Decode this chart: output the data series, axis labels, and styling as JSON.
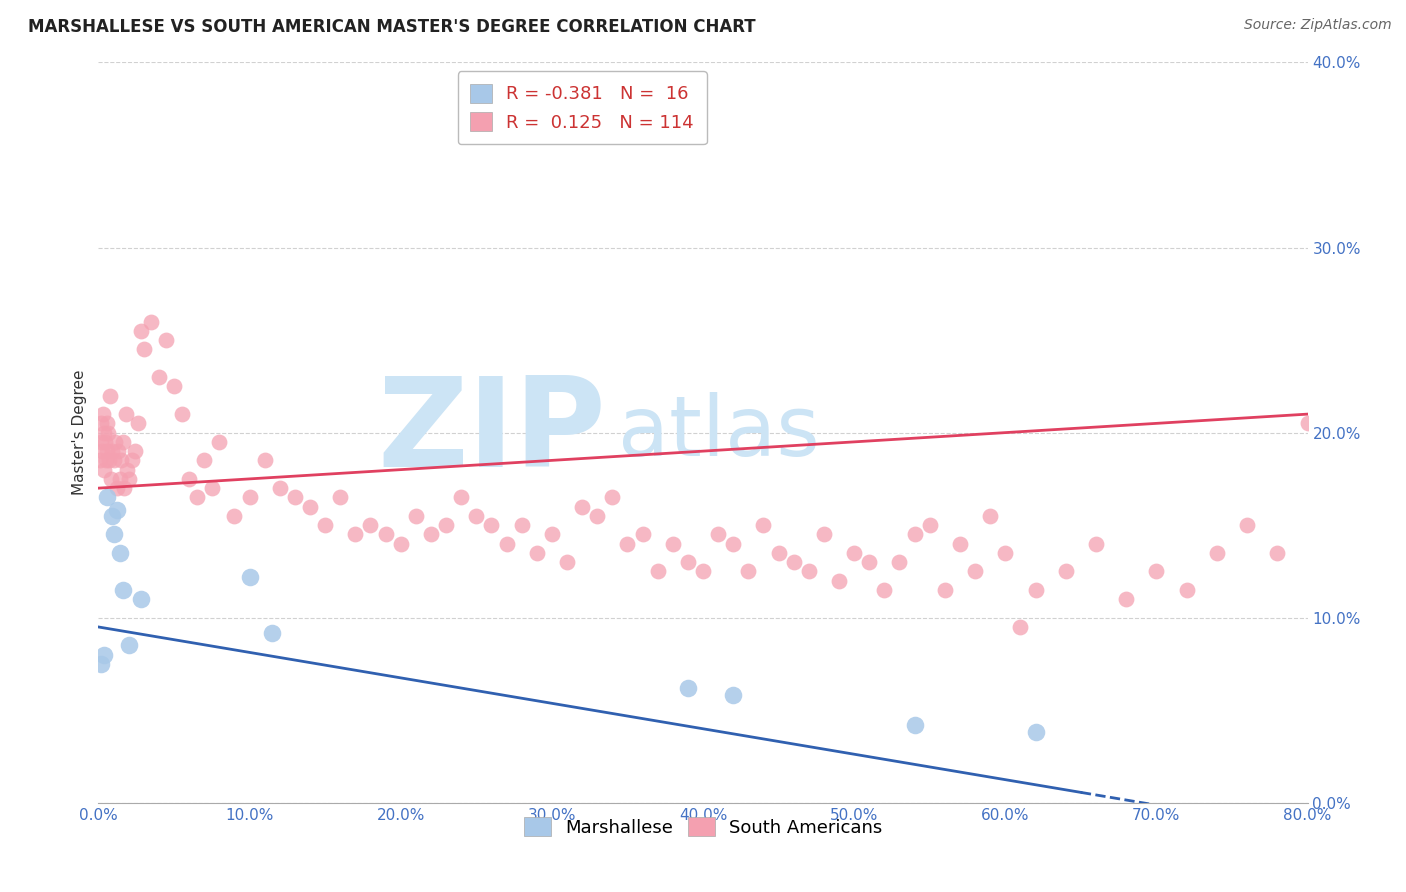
{
  "title": "MARSHALLESE VS SOUTH AMERICAN MASTER'S DEGREE CORRELATION CHART",
  "source": "Source: ZipAtlas.com",
  "xlabel_ticks": [
    0,
    10,
    20,
    30,
    40,
    50,
    60,
    70,
    80
  ],
  "ylabel_ticks": [
    0,
    10,
    20,
    30,
    40
  ],
  "xlim": [
    0,
    80
  ],
  "ylim": [
    0,
    40
  ],
  "ylabel": "Master's Degree",
  "marshallese_x": [
    0.2,
    0.4,
    0.6,
    0.9,
    1.0,
    1.2,
    1.4,
    1.6,
    2.0,
    2.8,
    10.0,
    11.5,
    39.0,
    42.0,
    54.0,
    62.0
  ],
  "marshallese_y": [
    7.5,
    8.0,
    16.5,
    15.5,
    14.5,
    15.8,
    13.5,
    11.5,
    8.5,
    11.0,
    12.2,
    9.2,
    6.2,
    5.8,
    4.2,
    3.8
  ],
  "south_american_x": [
    0.1,
    0.15,
    0.2,
    0.25,
    0.3,
    0.35,
    0.4,
    0.45,
    0.5,
    0.55,
    0.6,
    0.65,
    0.7,
    0.75,
    0.8,
    0.9,
    1.0,
    1.1,
    1.2,
    1.3,
    1.4,
    1.5,
    1.6,
    1.7,
    1.8,
    1.9,
    2.0,
    2.2,
    2.4,
    2.6,
    2.8,
    3.0,
    3.5,
    4.0,
    4.5,
    5.0,
    5.5,
    6.0,
    6.5,
    7.0,
    7.5,
    8.0,
    9.0,
    10.0,
    11.0,
    12.0,
    13.0,
    14.0,
    15.0,
    16.0,
    17.0,
    18.0,
    19.0,
    20.0,
    21.0,
    22.0,
    23.0,
    24.0,
    25.0,
    26.0,
    27.0,
    28.0,
    29.0,
    30.0,
    31.0,
    32.0,
    33.0,
    34.0,
    35.0,
    36.0,
    37.0,
    38.0,
    39.0,
    40.0,
    41.0,
    42.0,
    43.0,
    44.0,
    45.0,
    46.0,
    47.0,
    48.0,
    49.0,
    50.0,
    51.0,
    52.0,
    53.0,
    54.0,
    55.0,
    56.0,
    57.0,
    58.0,
    59.0,
    60.0,
    61.0,
    62.0,
    64.0,
    66.0,
    68.0,
    70.0,
    72.0,
    74.0,
    76.0,
    78.0,
    80.0
  ],
  "south_american_y": [
    18.5,
    19.5,
    20.5,
    19.0,
    21.0,
    18.0,
    20.0,
    19.5,
    18.5,
    20.5,
    19.0,
    20.0,
    18.5,
    22.0,
    17.5,
    19.0,
    18.5,
    19.5,
    17.0,
    19.0,
    17.5,
    18.5,
    19.5,
    17.0,
    21.0,
    18.0,
    17.5,
    18.5,
    19.0,
    20.5,
    25.5,
    24.5,
    26.0,
    23.0,
    25.0,
    22.5,
    21.0,
    17.5,
    16.5,
    18.5,
    17.0,
    19.5,
    15.5,
    16.5,
    18.5,
    17.0,
    16.5,
    16.0,
    15.0,
    16.5,
    14.5,
    15.0,
    14.5,
    14.0,
    15.5,
    14.5,
    15.0,
    16.5,
    15.5,
    15.0,
    14.0,
    15.0,
    13.5,
    14.5,
    13.0,
    16.0,
    15.5,
    16.5,
    14.0,
    14.5,
    12.5,
    14.0,
    13.0,
    12.5,
    14.5,
    14.0,
    12.5,
    15.0,
    13.5,
    13.0,
    12.5,
    14.5,
    12.0,
    13.5,
    13.0,
    11.5,
    13.0,
    14.5,
    15.0,
    11.5,
    14.0,
    12.5,
    15.5,
    13.5,
    9.5,
    11.5,
    12.5,
    14.0,
    11.0,
    12.5,
    11.5,
    13.5,
    15.0,
    13.5,
    20.5
  ],
  "marshallese_color": "#a8c8e8",
  "south_american_color": "#f4a0b0",
  "marshallese_line_color": "#3060b0",
  "south_american_line_color": "#e04060",
  "marshallese_line_start_y": 9.5,
  "marshallese_line_end_y": -1.5,
  "south_american_line_start_y": 17.0,
  "south_american_line_end_y": 21.0,
  "blue_solid_end_x": 65,
  "background_color": "#ffffff",
  "grid_color": "#cccccc",
  "watermark_zip_text": "ZIP",
  "watermark_atlas_text": "atlas",
  "watermark_color": "#cce4f5",
  "title_fontsize": 12,
  "source_fontsize": 10,
  "axis_label_fontsize": 11,
  "tick_fontsize": 11,
  "legend_fontsize": 13
}
